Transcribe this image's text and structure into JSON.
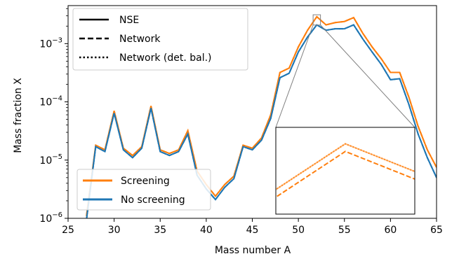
{
  "chart_data": {
    "type": "line",
    "xlabel": "Mass number A",
    "ylabel": "Mass fraction X",
    "xlim": [
      25,
      65
    ],
    "ylim": [
      1e-06,
      0.0045
    ],
    "yscale": "log",
    "x_ticks": [
      25,
      30,
      35,
      40,
      45,
      50,
      55,
      60,
      65
    ],
    "y_ticks": [
      {
        "value": 1e-06,
        "base": "10",
        "exp": "−6"
      },
      {
        "value": 1e-05,
        "base": "10",
        "exp": "−5"
      },
      {
        "value": 0.0001,
        "base": "10",
        "exp": "−4"
      },
      {
        "value": 0.001,
        "base": "10",
        "exp": "−3"
      }
    ],
    "x": [
      27,
      28,
      29,
      30,
      31,
      32,
      33,
      34,
      35,
      36,
      37,
      38,
      39,
      40,
      41,
      42,
      43,
      44,
      45,
      46,
      47,
      48,
      49,
      50,
      51,
      52,
      53,
      54,
      55,
      56,
      57,
      58,
      59,
      60,
      61,
      62,
      63,
      64,
      65
    ],
    "series": [
      {
        "name": "Screening",
        "color": "#ff7f0e",
        "values": [
          1.1e-06,
          1.8e-05,
          1.5e-05,
          7e-05,
          1.6e-05,
          1.2e-05,
          1.7e-05,
          8.5e-05,
          1.5e-05,
          1.3e-05,
          1.5e-05,
          3.2e-05,
          6.5e-06,
          3.8e-06,
          2.4e-06,
          3.8e-06,
          5.3e-06,
          1.8e-05,
          1.6e-05,
          2.4e-05,
          6e-05,
          0.00032,
          0.00038,
          0.00088,
          0.0017,
          0.0029,
          0.0021,
          0.0023,
          0.0024,
          0.0028,
          0.0015,
          0.00088,
          0.00055,
          0.00032,
          0.00032,
          0.00012,
          3.8e-05,
          1.5e-05,
          7.5e-06
        ]
      },
      {
        "name": "No screening",
        "color": "#1f77b4",
        "values": [
          9.5e-07,
          1.7e-05,
          1.4e-05,
          6.4e-05,
          1.5e-05,
          1.1e-05,
          1.6e-05,
          7.8e-05,
          1.4e-05,
          1.2e-05,
          1.4e-05,
          2.8e-05,
          5.5e-06,
          3.2e-06,
          2.1e-06,
          3.4e-06,
          4.8e-06,
          1.7e-05,
          1.5e-05,
          2.2e-05,
          5.2e-05,
          0.00026,
          0.00031,
          0.00072,
          0.0013,
          0.0021,
          0.0017,
          0.0018,
          0.0018,
          0.0021,
          0.0012,
          0.00072,
          0.00044,
          0.00024,
          0.00025,
          9e-05,
          2.8e-05,
          1.1e-05,
          5e-06
        ]
      }
    ],
    "style_legend": {
      "placement": "top-left",
      "entries": [
        {
          "label": "NSE",
          "dash": "solid"
        },
        {
          "label": "Network",
          "dash": "dashed"
        },
        {
          "label": "Network (det. bal.)",
          "dash": "dotted"
        }
      ]
    },
    "color_legend": {
      "placement": "bottom-left",
      "entries": [
        {
          "label": "Screening",
          "color": "#ff7f0e"
        },
        {
          "label": "No screening",
          "color": "#1f77b4"
        }
      ]
    },
    "inset": {
      "xlim": [
        51.6,
        52.4
      ],
      "ylim_factor": [
        0.72,
        1.08
      ],
      "region_of": "peak near A=52"
    },
    "grid": false
  }
}
